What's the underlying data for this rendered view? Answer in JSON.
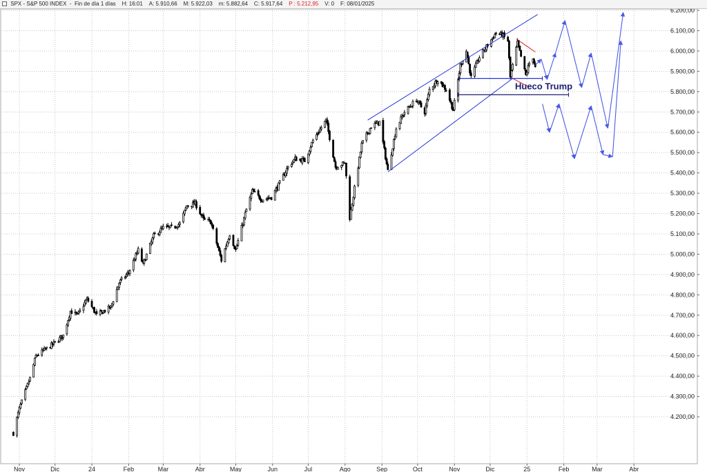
{
  "header": {
    "symbol": "SPX - S&P 500 INDEX",
    "period": "Fin de día 1 días",
    "high": "H: 16:01",
    "open": "A: 5.910,66",
    "max": "M: 5.922,03",
    "min": "m: 5.882,64",
    "close": "C: 5.917,64",
    "p_value": "P : 5.212,95",
    "volume": "V: 0",
    "date": "F: 08/01/2025",
    "p_color": "#e02020"
  },
  "chart_data": {
    "type": "candlestick",
    "title": "SPX - S&P 500 INDEX",
    "ylim": [
      4100,
      6200
    ],
    "yticks": [
      "4.200,00",
      "4.300,00",
      "4.400,00",
      "4.500,00",
      "4.600,00",
      "4.700,00",
      "4.800,00",
      "4.900,00",
      "5.000,00",
      "5.100,00",
      "5.200,00",
      "5.300,00",
      "5.400,00",
      "5.500,00",
      "5.600,00",
      "5.700,00",
      "5.800,00",
      "5.900,00",
      "6.000,00",
      "6.100,00",
      "6.200,00"
    ],
    "xticks": [
      "Nov",
      "Dic",
      "24",
      "Feb",
      "Mar",
      "Abr",
      "May",
      "Jun",
      "Jul",
      "Ago",
      "Sep",
      "Oct",
      "Nov",
      "Dic",
      "25",
      "Feb",
      "Mar",
      "Abr"
    ],
    "grid": true,
    "price_path": [
      [
        "2023-10-27",
        4120
      ],
      [
        "2023-11-01",
        4240
      ],
      [
        "2023-11-10",
        4390
      ],
      [
        "2023-11-15",
        4500
      ],
      [
        "2023-11-30",
        4560
      ],
      [
        "2023-12-08",
        4600
      ],
      [
        "2023-12-14",
        4720
      ],
      [
        "2023-12-20",
        4700
      ],
      [
        "2023-12-28",
        4780
      ],
      [
        "2024-01-05",
        4700
      ],
      [
        "2024-01-17",
        4740
      ],
      [
        "2024-01-24",
        4860
      ],
      [
        "2024-02-01",
        4910
      ],
      [
        "2024-02-09",
        5020
      ],
      [
        "2024-02-13",
        4950
      ],
      [
        "2024-02-22",
        5090
      ],
      [
        "2024-03-01",
        5130
      ],
      [
        "2024-03-08",
        5130
      ],
      [
        "2024-03-15",
        5150
      ],
      [
        "2024-03-21",
        5240
      ],
      [
        "2024-03-28",
        5250
      ],
      [
        "2024-04-04",
        5170
      ],
      [
        "2024-04-10",
        5160
      ],
      [
        "2024-04-19",
        4970
      ],
      [
        "2024-04-26",
        5100
      ],
      [
        "2024-05-01",
        5020
      ],
      [
        "2024-05-10",
        5220
      ],
      [
        "2024-05-15",
        5310
      ],
      [
        "2024-05-23",
        5270
      ],
      [
        "2024-05-31",
        5280
      ],
      [
        "2024-06-07",
        5350
      ],
      [
        "2024-06-14",
        5430
      ],
      [
        "2024-06-20",
        5470
      ],
      [
        "2024-06-28",
        5460
      ],
      [
        "2024-07-05",
        5560
      ],
      [
        "2024-07-16",
        5660
      ],
      [
        "2024-07-24",
        5430
      ],
      [
        "2024-08-01",
        5450
      ],
      [
        "2024-08-05",
        5180
      ],
      [
        "2024-08-15",
        5540
      ],
      [
        "2024-08-23",
        5630
      ],
      [
        "2024-08-30",
        5650
      ],
      [
        "2024-09-06",
        5410
      ],
      [
        "2024-09-13",
        5620
      ],
      [
        "2024-09-20",
        5700
      ],
      [
        "2024-09-30",
        5760
      ],
      [
        "2024-10-07",
        5700
      ],
      [
        "2024-10-11",
        5810
      ],
      [
        "2024-10-18",
        5860
      ],
      [
        "2024-10-25",
        5810
      ],
      [
        "2024-10-31",
        5710
      ],
      [
        "2024-11-06",
        5930
      ],
      [
        "2024-11-11",
        6000
      ],
      [
        "2024-11-15",
        5870
      ],
      [
        "2024-11-22",
        5970
      ],
      [
        "2024-11-29",
        6030
      ],
      [
        "2024-12-06",
        6090
      ],
      [
        "2024-12-11",
        6080
      ],
      [
        "2024-12-16",
        6050
      ],
      [
        "2024-12-18",
        5870
      ],
      [
        "2024-12-24",
        6040
      ],
      [
        "2024-12-31",
        5880
      ],
      [
        "2025-01-03",
        5940
      ],
      [
        "2025-01-06",
        5970
      ],
      [
        "2025-01-08",
        5918
      ]
    ],
    "annotations": [
      {
        "text": "Hueco Trump",
        "color": "#1c1c70"
      }
    ],
    "channel": {
      "lower": [
        [
          "2024-09-06",
          5405
        ],
        [
          "2024-12-20",
          5865
        ]
      ],
      "upper": [
        [
          "2024-08-20",
          5660
        ],
        [
          "2025-01-10",
          6180
        ]
      ]
    },
    "gap_lines": [
      {
        "from": "2024-11-05",
        "to": "2025-01-14",
        "value": 5865
      },
      {
        "from": "2024-11-04",
        "to": "2025-02-05",
        "value": 5785
      }
    ],
    "wedge": {
      "upper": [
        [
          "2024-12-23",
          6060
        ],
        [
          "2025-01-08",
          5995
        ]
      ],
      "lower": [
        [
          "2024-12-20",
          5865
        ],
        [
          "2025-01-02",
          5825
        ]
      ]
    },
    "projection_upper": [
      [
        "2025-01-08",
        5930
      ],
      [
        "2025-01-13",
        5960
      ],
      [
        "2025-01-18",
        5860
      ],
      [
        "2025-01-25",
        5990
      ],
      [
        "2025-02-02",
        6150
      ],
      [
        "2025-02-16",
        5820
      ],
      [
        "2025-02-24",
        5990
      ],
      [
        "2025-03-10",
        5620
      ],
      [
        "2025-03-23",
        6190
      ]
    ],
    "projection_lower": [
      [
        "2025-01-14",
        5740
      ],
      [
        "2025-01-20",
        5600
      ],
      [
        "2025-01-28",
        5740
      ],
      [
        "2025-02-10",
        5470
      ],
      [
        "2025-02-24",
        5730
      ],
      [
        "2025-03-06",
        5490
      ],
      [
        "2025-03-14",
        5480
      ],
      [
        "2025-03-21",
        6050
      ]
    ],
    "colors": {
      "candles": "#000000",
      "channel": "#2434d8",
      "wedge": "#d02020",
      "projection": "#4a5ae6",
      "gap": "#1c1c70",
      "grid": "#c4c4c4"
    }
  }
}
